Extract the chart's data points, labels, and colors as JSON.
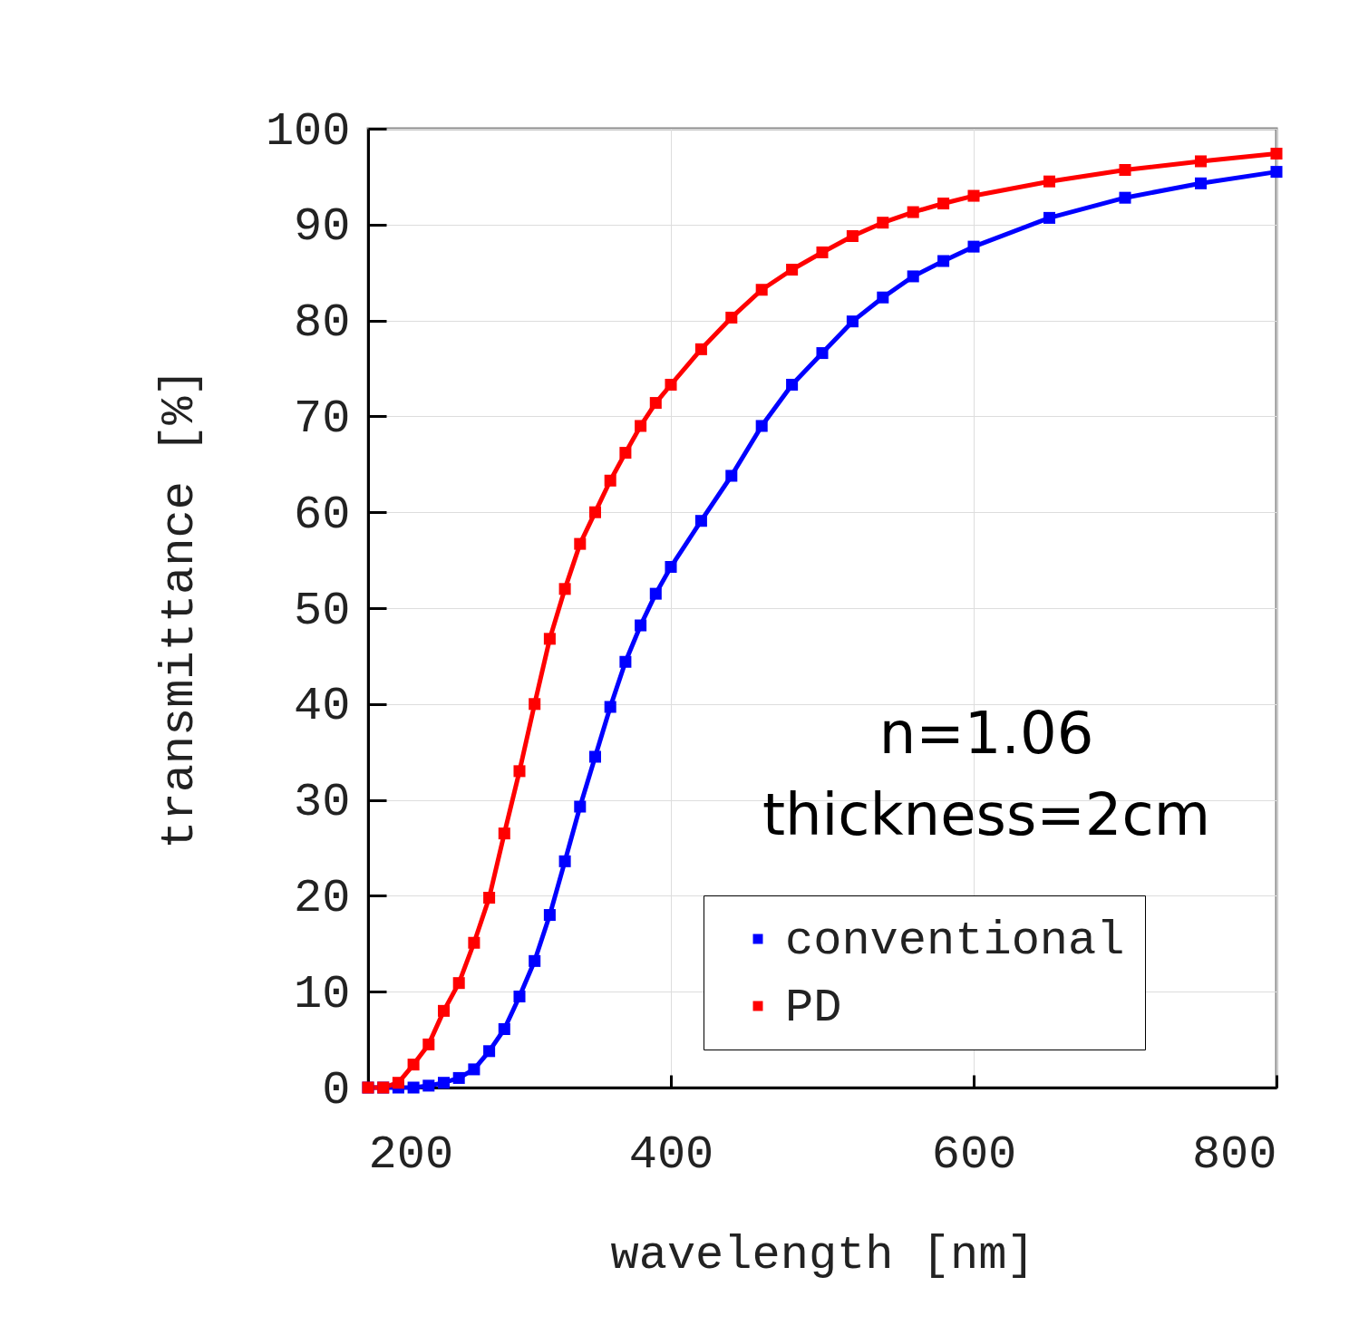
{
  "chart_data": {
    "type": "line",
    "xlabel": "wavelength [nm]",
    "ylabel": "transmittance [%]",
    "xlim": [
      200,
      800
    ],
    "ylim": [
      0,
      100
    ],
    "xticks": [
      200,
      400,
      600,
      800
    ],
    "yticks": [
      0,
      10,
      20,
      30,
      40,
      50,
      60,
      70,
      80,
      90,
      100
    ],
    "grid": true,
    "legend": "bottom right",
    "marker": "square",
    "line_style": "solid",
    "annotations": [
      "n=1.06",
      "thickness=2cm"
    ],
    "x": [
      200,
      210,
      220,
      230,
      240,
      250,
      260,
      270,
      280,
      290,
      300,
      310,
      320,
      330,
      340,
      350,
      360,
      370,
      380,
      390,
      400,
      420,
      440,
      460,
      480,
      500,
      520,
      540,
      560,
      580,
      600,
      650,
      700,
      750,
      800
    ],
    "series": [
      {
        "name": "conventional",
        "color": "#0000ff",
        "values": [
          0,
          0,
          0,
          0,
          0.2,
          0.5,
          1,
          1.9,
          3.8,
          6.1,
          9.5,
          13.2,
          18,
          23.6,
          29.3,
          34.5,
          39.7,
          44.4,
          48.2,
          51.5,
          54.3,
          59.1,
          63.8,
          69,
          73.3,
          76.6,
          79.9,
          82.4,
          84.6,
          86.2,
          87.7,
          90.7,
          92.8,
          94.3,
          95.5
        ]
      },
      {
        "name": "PD",
        "color": "#ff0000",
        "values": [
          0,
          0,
          0.5,
          2.4,
          4.5,
          8,
          10.9,
          15.1,
          19.8,
          26.5,
          33,
          40,
          46.8,
          52,
          56.7,
          60,
          63.3,
          66.2,
          69,
          71.4,
          73.3,
          77,
          80.3,
          83.2,
          85.3,
          87.1,
          88.8,
          90.2,
          91.3,
          92.2,
          93,
          94.5,
          95.7,
          96.6,
          97.4
        ]
      }
    ]
  }
}
